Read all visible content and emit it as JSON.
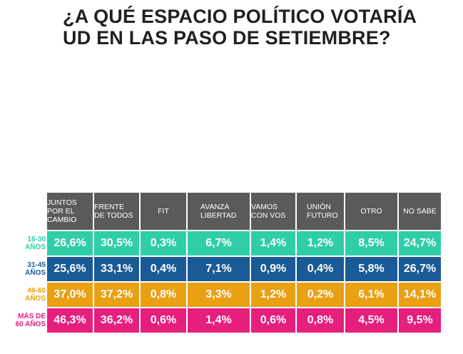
{
  "title": {
    "line1": "¿A QUÉ ESPACIO POLÍTICO VOTARÍA",
    "line2": "UD EN LAS PASO DE SETIEMBRE?"
  },
  "colors": {
    "header": "#5a5a5a",
    "row_16_30": "#2fcea8",
    "row_31_45": "#1a5a96",
    "row_46_60": "#e9a013",
    "row_60_plus": "#e61e7e",
    "label_16_30": "#2fcea8",
    "label_31_45": "#1a5a96",
    "label_46_60": "#e9a013",
    "label_60_plus": "#e61e7e"
  },
  "chart_data": {
    "type": "table",
    "title": "¿A QUÉ ESPACIO POLÍTICO VOTARÍA UD EN LAS PASO DE SETIEMBRE?",
    "columns": [
      {
        "lines": [
          "JUNTOS",
          "POR EL",
          "CAMBIO"
        ]
      },
      {
        "lines": [
          "FRENTE",
          "DE TODOS"
        ]
      },
      {
        "lines": [
          "FIT"
        ]
      },
      {
        "lines": [
          "AVANZA",
          "LIBERTAD"
        ]
      },
      {
        "lines": [
          "VAMOS",
          "CON VOS"
        ]
      },
      {
        "lines": [
          "UNIÓN",
          "FUTURO"
        ]
      },
      {
        "lines": [
          "OTRO"
        ]
      },
      {
        "lines": [
          "NO SABE"
        ]
      }
    ],
    "rows": [
      {
        "label_lines": [
          "16-30",
          "AÑOS"
        ],
        "values": [
          "26,6%",
          "30,5%",
          "0,3%",
          "6,7%",
          "1,4%",
          "1,2%",
          "8,5%",
          "24,7%"
        ]
      },
      {
        "label_lines": [
          "31-45",
          "AÑOS"
        ],
        "values": [
          "25,6%",
          "33,1%",
          "0,4%",
          "7,1%",
          "0,9%",
          "0,4%",
          "5,8%",
          "26,7%"
        ]
      },
      {
        "label_lines": [
          "46-60",
          "AÑOS"
        ],
        "values": [
          "37,0%",
          "37,2%",
          "0,8%",
          "3,3%",
          "1,2%",
          "0,2%",
          "6,1%",
          "14,1%"
        ]
      },
      {
        "label_lines": [
          "MÁS DE",
          "60 AÑOS"
        ],
        "values": [
          "46,3%",
          "36,2%",
          "0,6%",
          "1,4%",
          "0,6%",
          "0,8%",
          "4,5%",
          "9,5%"
        ]
      }
    ]
  }
}
